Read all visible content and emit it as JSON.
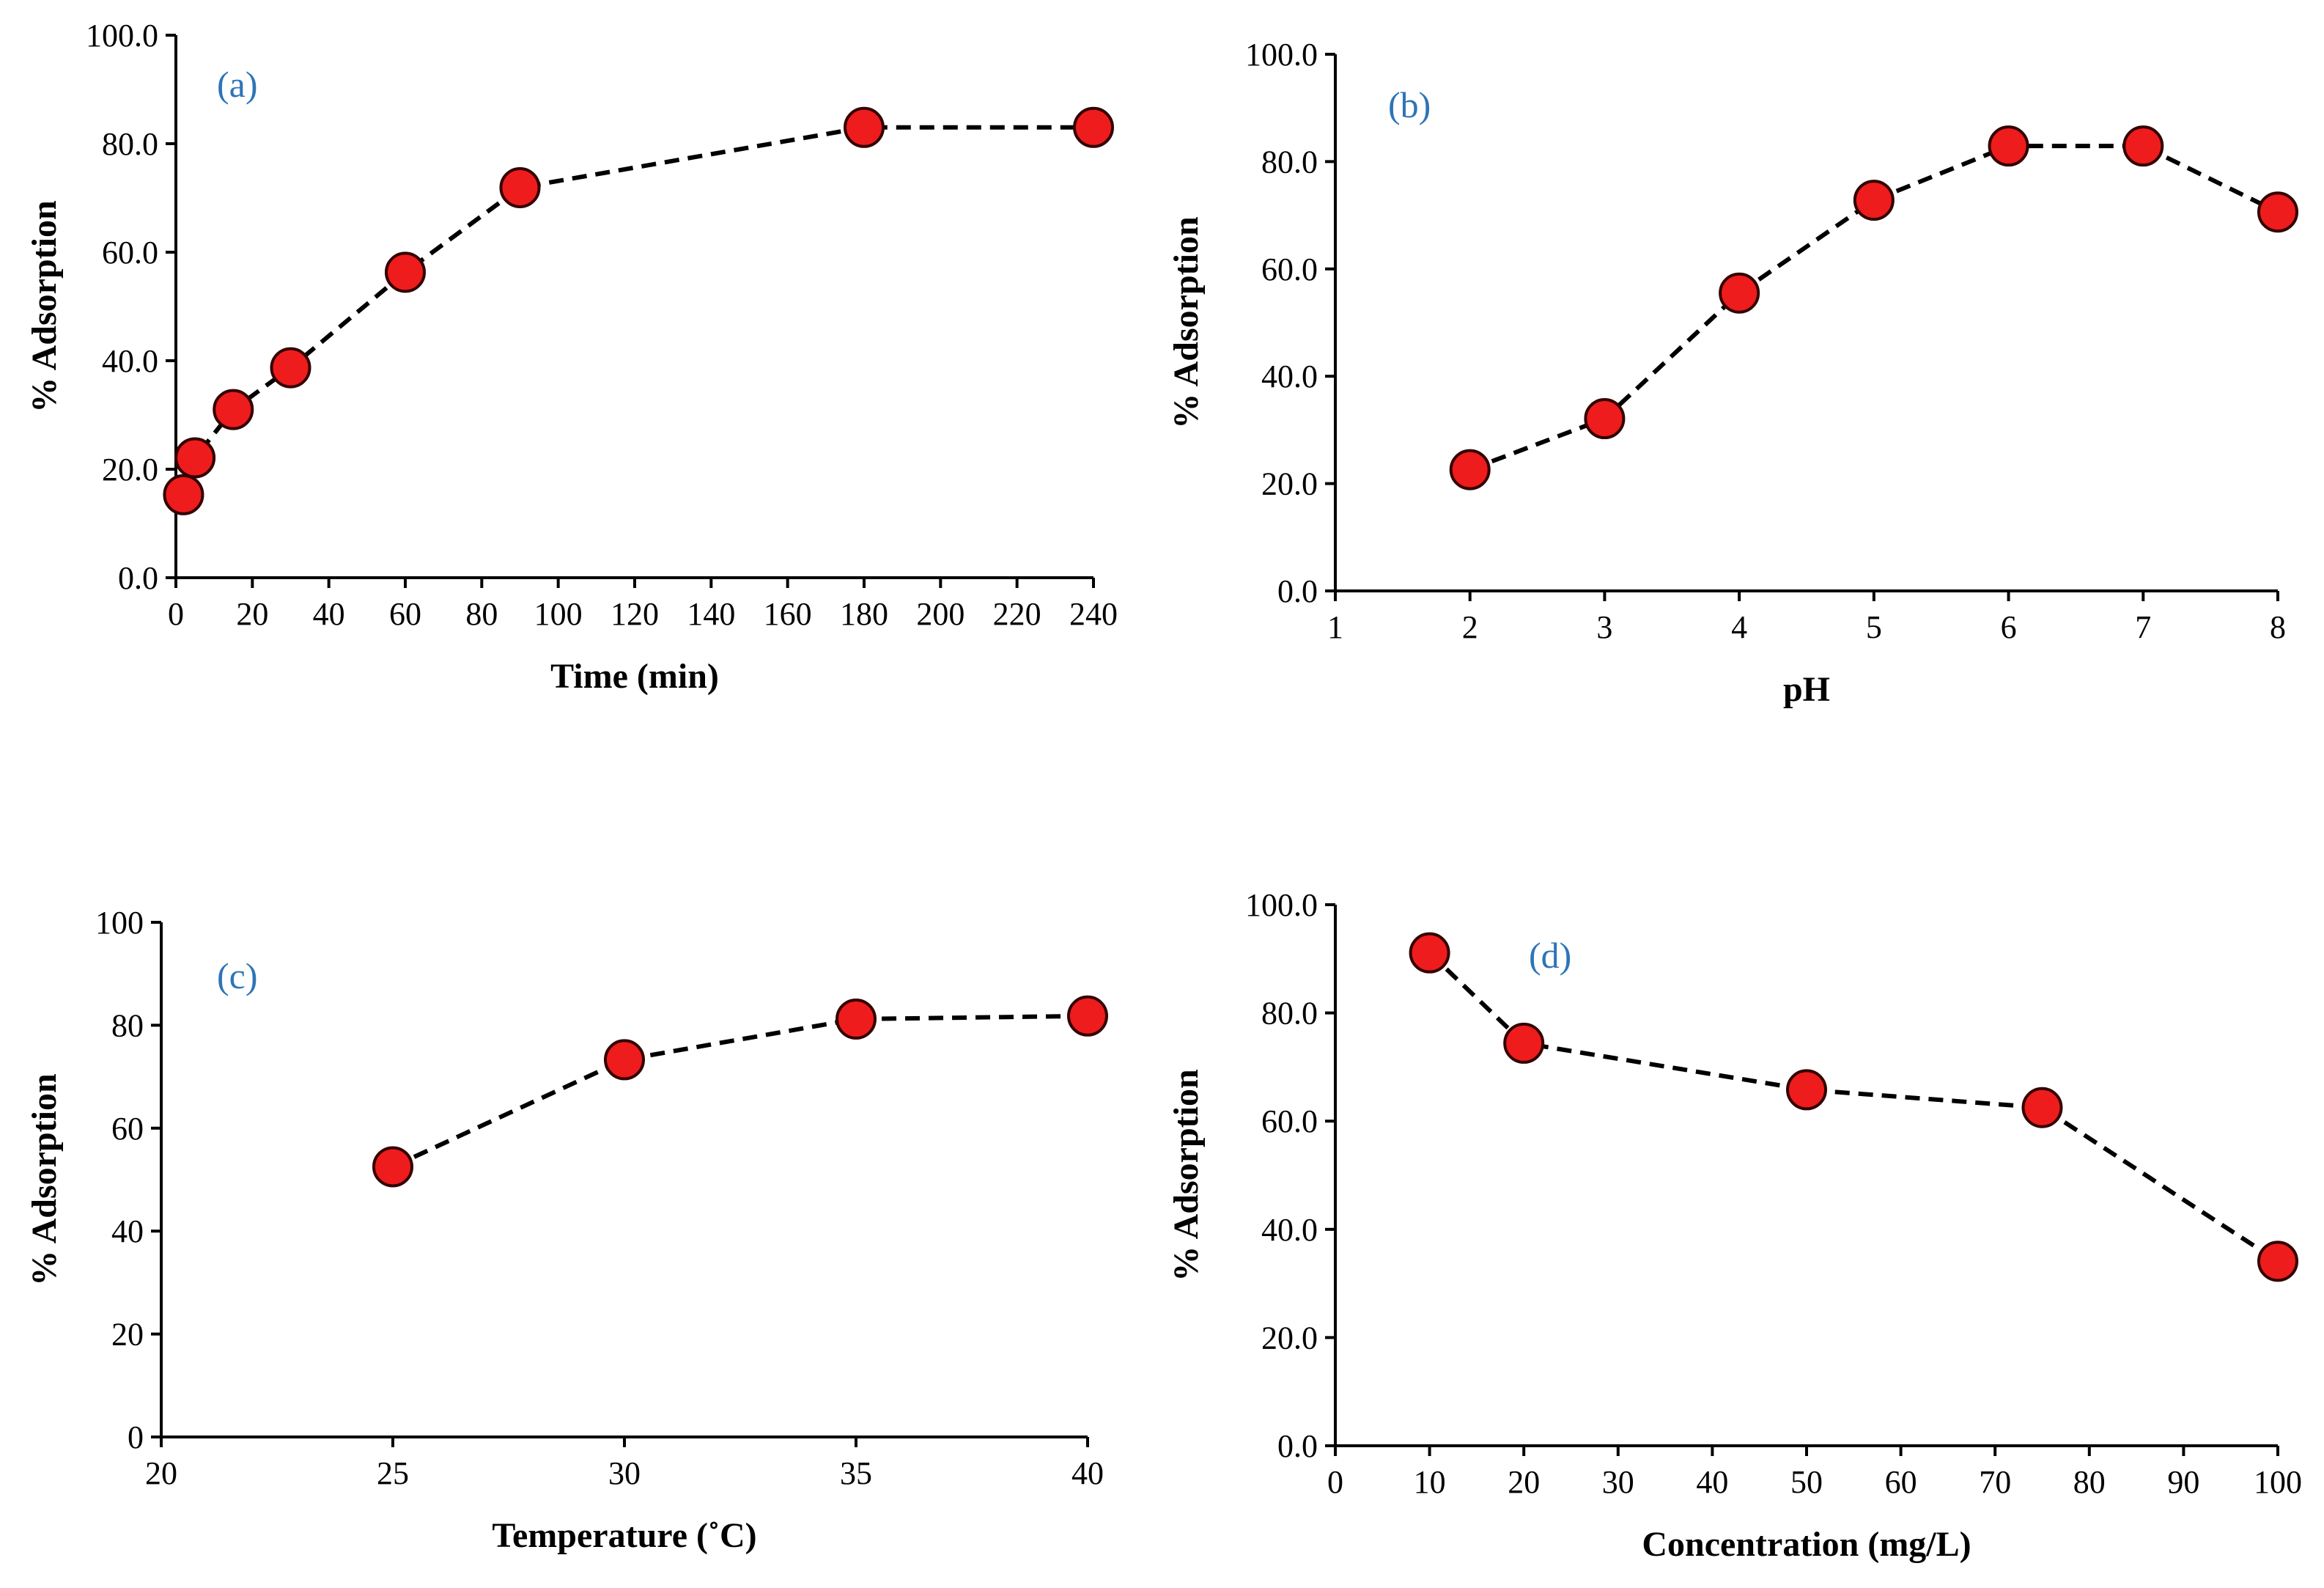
{
  "colors": {
    "marker_fill": "#ee1c1c",
    "marker_stroke": "#330000",
    "line": "#000000",
    "panel_label": "#2e75b6"
  },
  "chart_data": [
    {
      "type": "line",
      "panel_label": "(a)",
      "title": "",
      "xlabel": "Time (min)",
      "ylabel": "% Adsorption",
      "x": [
        2,
        5,
        15,
        30,
        60,
        90,
        180,
        240
      ],
      "values": [
        15.3,
        22.1,
        31.0,
        38.7,
        56.3,
        71.9,
        83.0,
        83.0
      ],
      "xlim": [
        0,
        240
      ],
      "ylim": [
        0,
        100
      ],
      "x_ticks": [
        0,
        20,
        40,
        60,
        80,
        100,
        120,
        140,
        160,
        180,
        200,
        220,
        240
      ],
      "x_tick_labels": [
        "0",
        "20",
        "40",
        "60",
        "80",
        "100",
        "120",
        "140",
        "160",
        "180",
        "200",
        "220",
        "240"
      ],
      "y_ticks": [
        0,
        20,
        40,
        60,
        80,
        100
      ],
      "y_tick_labels": [
        "0.0",
        "20.0",
        "40.0",
        "60.0",
        "80.0",
        "100.0"
      ],
      "grid": false
    },
    {
      "type": "line",
      "panel_label": "(b)",
      "title": "",
      "xlabel": "pH",
      "ylabel": "% Adsorption",
      "x": [
        2,
        3,
        4,
        5,
        6,
        7,
        8
      ],
      "values": [
        22.6,
        32.1,
        55.5,
        72.8,
        82.9,
        82.9,
        70.6
      ],
      "xlim": [
        1,
        8
      ],
      "ylim": [
        0,
        100
      ],
      "x_ticks": [
        1,
        2,
        3,
        4,
        5,
        6,
        7,
        8
      ],
      "x_tick_labels": [
        "1",
        "2",
        "3",
        "4",
        "5",
        "6",
        "7",
        "8"
      ],
      "y_ticks": [
        0,
        20,
        40,
        60,
        80,
        100
      ],
      "y_tick_labels": [
        "0.0",
        "20.0",
        "40.0",
        "60.0",
        "80.0",
        "100.0"
      ],
      "grid": false
    },
    {
      "type": "line",
      "panel_label": "(c)",
      "title": "",
      "xlabel": "Temperature (˚C)",
      "ylabel": "% Adsorption",
      "x": [
        25,
        30,
        35,
        40
      ],
      "values": [
        52.5,
        73.3,
        81.2,
        81.8
      ],
      "xlim": [
        20,
        40
      ],
      "ylim": [
        0,
        100
      ],
      "x_ticks": [
        20,
        25,
        30,
        35,
        40
      ],
      "x_tick_labels": [
        "20",
        "25",
        "30",
        "35",
        "40"
      ],
      "y_ticks": [
        0,
        20,
        40,
        60,
        80,
        100
      ],
      "y_tick_labels": [
        "0",
        "20",
        "40",
        "60",
        "80",
        "100"
      ],
      "grid": false
    },
    {
      "type": "line",
      "panel_label": "(d)",
      "title": "",
      "xlabel": "Concentration (mg/L)",
      "ylabel": "% Adsorption",
      "x": [
        10,
        20,
        50,
        75,
        100
      ],
      "values": [
        91.1,
        74.4,
        65.8,
        62.5,
        34.1
      ],
      "xlim": [
        0,
        100
      ],
      "ylim": [
        0,
        100
      ],
      "x_ticks": [
        0,
        10,
        20,
        30,
        40,
        50,
        60,
        70,
        80,
        90,
        100
      ],
      "x_tick_labels": [
        "0",
        "10",
        "20",
        "30",
        "40",
        "50",
        "60",
        "70",
        "80",
        "90",
        "100"
      ],
      "y_ticks": [
        0,
        20,
        40,
        60,
        80,
        100
      ],
      "y_tick_labels": [
        "0.0",
        "20.0",
        "40.0",
        "60.0",
        "80.0",
        "100.0"
      ],
      "grid": false
    }
  ]
}
